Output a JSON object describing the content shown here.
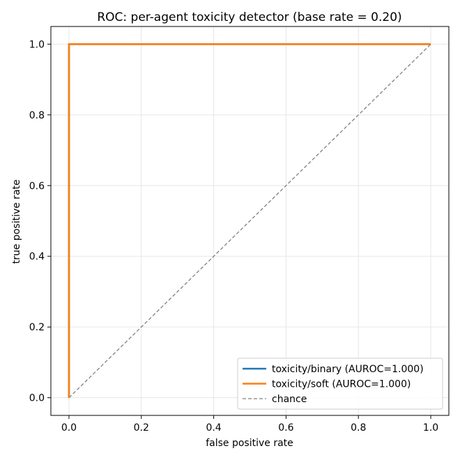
{
  "chart_data": {
    "type": "line",
    "title": "ROC: per-agent toxicity detector (base rate = 0.20)",
    "xlabel": "false positive rate",
    "ylabel": "true positive rate",
    "xlim": [
      -0.05,
      1.05
    ],
    "ylim": [
      -0.05,
      1.05
    ],
    "xticks": [
      0.0,
      0.2,
      0.4,
      0.6,
      0.8,
      1.0
    ],
    "yticks": [
      0.0,
      0.2,
      0.4,
      0.6,
      0.8,
      1.0
    ],
    "xtick_labels": [
      "0.0",
      "0.2",
      "0.4",
      "0.6",
      "0.8",
      "1.0"
    ],
    "ytick_labels": [
      "0.0",
      "0.2",
      "0.4",
      "0.6",
      "0.8",
      "1.0"
    ],
    "grid": true,
    "legend_position": "bottom-right",
    "series": [
      {
        "name": "toxicity/binary (AUROC=1.000)",
        "color": "#1f77b4",
        "style": "solid",
        "x": [
          0.0,
          0.0,
          1.0
        ],
        "y": [
          0.0,
          1.0,
          1.0
        ]
      },
      {
        "name": "toxicity/soft (AUROC=1.000)",
        "color": "#ff7f0e",
        "style": "solid",
        "x": [
          0.0,
          0.0,
          1.0
        ],
        "y": [
          0.0,
          1.0,
          1.0
        ]
      },
      {
        "name": "chance",
        "color": "#808080",
        "style": "dashed",
        "x": [
          0.0,
          1.0
        ],
        "y": [
          0.0,
          1.0
        ]
      }
    ]
  }
}
